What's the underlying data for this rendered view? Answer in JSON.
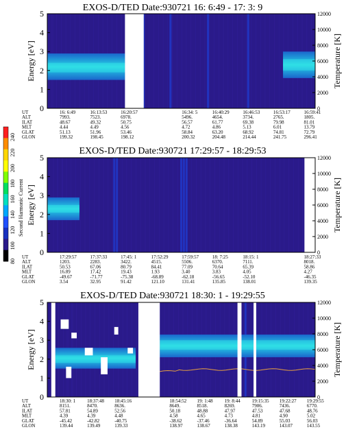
{
  "colors": {
    "background": "#2a1a8a",
    "band_core": "#30e0e8",
    "band_edge": "#1a7ad8",
    "band_mid": "#20b8e0",
    "streak": "#3c30b0",
    "gap": "#ffffff",
    "orange": "#e8a040"
  },
  "colorbar": {
    "label": "Second Harmonic Current",
    "ticks": [
      "240",
      "220",
      "200",
      "180",
      "160",
      "140",
      "120",
      "100",
      "80"
    ],
    "colors": [
      "#ff2020",
      "#ff8c00",
      "#ffd700",
      "#ffff00",
      "#80ff00",
      "#00e060",
      "#00e0c0",
      "#00a8ff",
      "#2050ff",
      "#1830c0",
      "#2a1a8a",
      "#000000"
    ]
  },
  "chart_data": [
    {
      "type": "heatmap",
      "title": "EXOS-D/TED   Date:930721  16: 6:49 - 17: 3: 9",
      "ylabel": "Energy [eV]",
      "y2label": "Temperature [K]",
      "ylim": [
        0,
        5
      ],
      "y2lim": [
        0,
        12000
      ],
      "yticks": [
        "0",
        "1",
        "2",
        "3",
        "4",
        "5"
      ],
      "y2ticks": [
        "0",
        "2000",
        "4000",
        "6000",
        "8000",
        "10000",
        "12000"
      ],
      "gaps": [
        [
          0.29,
          0.36
        ]
      ],
      "bands": [
        {
          "x0": 0.0,
          "x1": 0.29,
          "e0": 1.5,
          "e1": 2.9,
          "core0": 1.9,
          "core1": 2.4
        },
        {
          "x0": 0.88,
          "x1": 1.0,
          "e0": 1.6,
          "e1": 3.0,
          "core0": 2.0,
          "core1": 2.6
        }
      ],
      "streaks": [
        0.36,
        0.46,
        0.6,
        0.75
      ],
      "table": {
        "rows": [
          {
            "label": "UT",
            "values": [
              "16: 6:49",
              "16:13:53",
              "16:20:57",
              "",
              "16:34: 5",
              "16:40:29",
              "16:46:53",
              "16:53:17",
              "16:59:41"
            ]
          },
          {
            "label": "ALT",
            "values": [
              "7993.",
              "7523.",
              "6978.",
              "",
              "5496.",
              "4654.",
              "3734.",
              "2765.",
              "1805."
            ]
          },
          {
            "label": "ILAT",
            "values": [
              "48.67",
              "49.32",
              "50.75",
              "",
              "56.57",
              "61.77",
              "69.38",
              "79.98",
              "81.01"
            ]
          },
          {
            "label": "MLT",
            "values": [
              "4.44",
              "4.49",
              "4.56",
              "",
              "4.72",
              "4.86",
              "5.13",
              "6.01",
              "13.79"
            ]
          },
          {
            "label": "GLAT",
            "values": [
              "51.13",
              "51.96",
              "53.46",
              "",
              "58.84",
              "63.20",
              "68.92",
              "74.81",
              "72.79"
            ]
          },
          {
            "label": "GLON",
            "values": [
              "199.32",
              "198.45",
              "198.12",
              "",
              "200.32",
              "204.48",
              "214.44",
              "241.75",
              "296.41"
            ]
          }
        ]
      }
    },
    {
      "type": "heatmap",
      "title": "EXOS-D/TED   Date:930721  17:29:57 - 18:29:53",
      "ylabel": "Energy [eV]",
      "y2label": "Temperature [K]",
      "ylim": [
        0,
        5
      ],
      "y2lim": [
        0,
        12000
      ],
      "yticks": [
        "0",
        "1",
        "2",
        "3",
        "4",
        "5"
      ],
      "y2ticks": [
        "0",
        "2000",
        "4000",
        "6000",
        "8000",
        "10000",
        "12000"
      ],
      "gaps": [
        [
          0.96,
          1.0
        ]
      ],
      "bands": [
        {
          "x0": 0.0,
          "x1": 0.12,
          "e0": 1.7,
          "e1": 2.9,
          "core0": 2.1,
          "core1": 2.5
        }
      ],
      "streaks": [
        0.25,
        0.26,
        0.5,
        0.51,
        0.52
      ],
      "table": {
        "rows": [
          {
            "label": "UT",
            "values": [
              "17:29:57",
              "17:37:33",
              "17:45: 1",
              "17:52:29",
              "17:59:57",
              "18: 7:25",
              "18:15: 1",
              "",
              "18:27:33"
            ]
          },
          {
            "label": "ALT",
            "values": [
              "1203.",
              "2283.",
              "3422.",
              "4515.",
              "5506.",
              "6370.",
              "7111.",
              "",
              "8018."
            ]
          },
          {
            "label": "ILAT",
            "values": [
              "50.53",
              "67.06",
              "80.79",
              "84.41",
              "77.09",
              "70.64",
              "65.39",
              "",
              "58.86"
            ]
          },
          {
            "label": "MLT",
            "values": [
              "16.89",
              "17.42",
              "19.43",
              "1.93",
              "3.40",
              "3.83",
              "4.05",
              "",
              "4.27"
            ]
          },
          {
            "label": "GLAT",
            "values": [
              "-49.67",
              "-71.77",
              "-75.38",
              "-68.89",
              "-62.18",
              "-56.65",
              "-52.10",
              "",
              "-46.35"
            ]
          },
          {
            "label": "GLON",
            "values": [
              "3.54",
              "32.95",
              "91.42",
              "121.10",
              "131.41",
              "135.85",
              "138.01",
              "",
              "139.35"
            ]
          }
        ]
      }
    },
    {
      "type": "heatmap",
      "title": "EXOS-D/TED   Date:930721  18:30: 1 - 19:29:55",
      "ylabel": "Energy [eV]",
      "y2label": "Temperature [K]",
      "ylim": [
        0,
        5
      ],
      "y2lim": [
        0,
        12000
      ],
      "yticks": [
        "0",
        "1",
        "2",
        "3",
        "4",
        "5"
      ],
      "y2ticks": [
        "0",
        "2000",
        "4000",
        "6000",
        "8000",
        "10000",
        "12000"
      ],
      "gaps": [
        [
          0.015,
          0.03
        ],
        [
          0.34,
          0.42
        ],
        [
          0.71,
          0.725
        ],
        [
          0.77,
          0.78
        ]
      ],
      "bands": [
        {
          "x0": 0.42,
          "x1": 1.0,
          "e0": 2.1,
          "e1": 3.3,
          "core0": 2.5,
          "core1": 3.0
        },
        {
          "x0": 0.03,
          "x1": 0.33,
          "e0": 1.5,
          "e1": 2.6,
          "core0": 1.8,
          "core1": 2.2
        }
      ],
      "streaks": [
        0.72,
        0.74
      ],
      "table": {
        "rows": [
          {
            "label": "UT",
            "values": [
              "18:30: 1",
              "18:37:48",
              "18:45:16",
              "",
              "18:54:52",
              "19: 1:48",
              "19: 8:44",
              "19:15:35",
              "19:22:27",
              "19:29:55"
            ]
          },
          {
            "label": "ALT",
            "values": [
              "8151.",
              "8470.",
              "8636.",
              "",
              "8649.",
              "8518.",
              "8269.",
              "7906.",
              "7436.",
              "6770."
            ]
          },
          {
            "label": "ILAT",
            "values": [
              "57.81",
              "54.89",
              "52.56",
              "",
              "50.18",
              "48.88",
              "47.97",
              "47.53",
              "47.68",
              "48.76"
            ]
          },
          {
            "label": "MLT",
            "values": [
              "4.39",
              "4.39",
              "4.48",
              "",
              "4.58",
              "4.65",
              "4.73",
              "4.81",
              "4.90",
              "5.02"
            ]
          },
          {
            "label": "GLAT",
            "values": [
              "-45.42",
              "-42.82",
              "-40.75",
              "",
              "-38.62",
              "-37.46",
              "-36.64",
              "54.89",
              "55.03",
              "56.03"
            ]
          },
          {
            "label": "GLON",
            "values": [
              "139.44",
              "139.49",
              "139.33",
              "",
              "138.97",
              "138.67",
              "138.38",
              "143.19",
              "143.07",
              "143.55"
            ]
          }
        ]
      }
    }
  ]
}
